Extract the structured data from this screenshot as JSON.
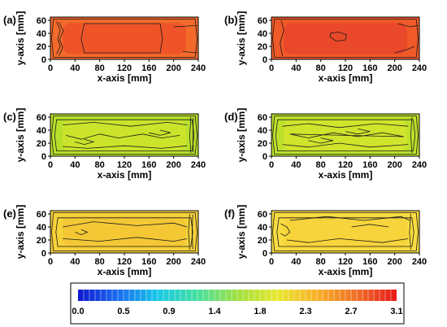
{
  "chart_data": [
    {
      "type": "heatmap",
      "panel_label": "(a)",
      "xlabel": "x-axis [mm]",
      "ylabel": "y-axis [mm]",
      "xlim": [
        0,
        240
      ],
      "ylim": [
        0,
        65
      ],
      "xticks": [
        "0",
        "40",
        "80",
        "120",
        "160",
        "200",
        "240"
      ],
      "yticks": [
        "0",
        "20",
        "40",
        "60"
      ],
      "fill_color": "#f36a2b",
      "inner_fill_color": "#ee4f28",
      "contours": [
        {
          "points": [
            [
              5,
              3
            ],
            [
              235,
              3
            ],
            [
              238,
              32
            ],
            [
              235,
              62
            ],
            [
              5,
              62
            ],
            [
              2,
              32
            ]
          ]
        },
        {
          "points": [
            [
              10,
              8
            ],
            [
              16,
              20
            ],
            [
              12,
              32
            ],
            [
              16,
              45
            ],
            [
              10,
              58
            ]
          ]
        },
        {
          "points": [
            [
              14,
              6
            ],
            [
              20,
              18
            ],
            [
              15,
              30
            ],
            [
              21,
              44
            ],
            [
              14,
              57
            ]
          ]
        },
        {
          "points": [
            [
              55,
              10
            ],
            [
              178,
              10
            ],
            [
              182,
              32
            ],
            [
              178,
              55
            ],
            [
              55,
              55
            ],
            [
              50,
              32
            ]
          ]
        },
        {
          "points": [
            [
              200,
              50
            ],
            [
              238,
              52
            ]
          ]
        },
        {
          "points": [
            [
              215,
              12
            ],
            [
              238,
              10
            ]
          ]
        }
      ]
    },
    {
      "type": "heatmap",
      "panel_label": "(b)",
      "xlabel": "x-axis [mm]",
      "ylabel": "y-axis [mm]",
      "xlim": [
        0,
        240
      ],
      "ylim": [
        0,
        65
      ],
      "xticks": [
        "0",
        "40",
        "80",
        "120",
        "160",
        "200",
        "240"
      ],
      "yticks": [
        "0",
        "20",
        "40",
        "60"
      ],
      "fill_color": "#f05a28",
      "inner_fill_color": "#e8442a",
      "contours": [
        {
          "points": [
            [
              5,
              3
            ],
            [
              235,
              3
            ],
            [
              238,
              32
            ],
            [
              235,
              62
            ],
            [
              5,
              62
            ],
            [
              2,
              32
            ]
          ]
        },
        {
          "points": [
            [
              18,
              5
            ],
            [
              14,
              25
            ],
            [
              20,
              45
            ],
            [
              16,
              60
            ]
          ]
        },
        {
          "points": [
            [
              95,
              35
            ],
            [
              105,
              28
            ],
            [
              120,
              30
            ],
            [
              122,
              38
            ],
            [
              108,
              42
            ],
            [
              96,
              40
            ]
          ]
        },
        {
          "points": [
            [
              200,
              10
            ],
            [
              220,
              15
            ],
            [
              232,
              20
            ]
          ]
        },
        {
          "points": [
            [
              205,
              55
            ],
            [
              225,
              50
            ],
            [
              238,
              52
            ]
          ]
        }
      ]
    },
    {
      "type": "heatmap",
      "panel_label": "(c)",
      "xlabel": "x-axis [mm]",
      "ylabel": "y-axis [mm]",
      "xlim": [
        0,
        240
      ],
      "ylim": [
        0,
        65
      ],
      "xticks": [
        "0",
        "40",
        "80",
        "120",
        "160",
        "200",
        "240"
      ],
      "yticks": [
        "0",
        "20",
        "40",
        "60"
      ],
      "fill_color": "#b8e02a",
      "inner_fill_color": "#cfe42c",
      "contours": [
        {
          "points": [
            [
              5,
              3
            ],
            [
              235,
              3
            ],
            [
              238,
              32
            ],
            [
              235,
              62
            ],
            [
              5,
              62
            ],
            [
              2,
              32
            ]
          ]
        },
        {
          "points": [
            [
              10,
              8
            ],
            [
              230,
              8
            ],
            [
              233,
              32
            ],
            [
              230,
              56
            ],
            [
              10,
              56
            ],
            [
              7,
              32
            ]
          ]
        },
        {
          "points": [
            [
              20,
              15
            ],
            [
              60,
              12
            ],
            [
              120,
              16
            ],
            [
              180,
              12
            ],
            [
              222,
              16
            ]
          ]
        },
        {
          "points": [
            [
              20,
              48
            ],
            [
              70,
              52
            ],
            [
              130,
              46
            ],
            [
              190,
              52
            ],
            [
              222,
              48
            ]
          ]
        },
        {
          "points": [
            [
              25,
              32
            ],
            [
              50,
              26
            ],
            [
              80,
              34
            ],
            [
              110,
              28
            ],
            [
              150,
              34
            ],
            [
              180,
              28
            ],
            [
              210,
              32
            ]
          ]
        },
        {
          "points": [
            [
              40,
              22
            ],
            [
              55,
              18
            ],
            [
              70,
              22
            ],
            [
              55,
              26
            ]
          ]
        },
        {
          "points": [
            [
              160,
              36
            ],
            [
              178,
              32
            ],
            [
              195,
              36
            ],
            [
              178,
              40
            ]
          ]
        },
        {
          "points": [
            [
              228,
              5
            ],
            [
              226,
              32
            ],
            [
              228,
              60
            ]
          ]
        },
        {
          "points": [
            [
              232,
              6
            ],
            [
              231,
              32
            ],
            [
              232,
              59
            ]
          ]
        }
      ]
    },
    {
      "type": "heatmap",
      "panel_label": "(d)",
      "xlabel": "x-axis [mm]",
      "ylabel": "y-axis [mm]",
      "xlim": [
        0,
        240
      ],
      "ylim": [
        0,
        65
      ],
      "xticks": [
        "0",
        "40",
        "80",
        "120",
        "160",
        "200",
        "240"
      ],
      "yticks": [
        "0",
        "20",
        "40",
        "60"
      ],
      "fill_color": "#bde12b",
      "inner_fill_color": "#d6e52d",
      "contours": [
        {
          "points": [
            [
              5,
              3
            ],
            [
              235,
              3
            ],
            [
              238,
              32
            ],
            [
              235,
              62
            ],
            [
              5,
              62
            ],
            [
              2,
              32
            ]
          ]
        },
        {
          "points": [
            [
              10,
              8
            ],
            [
              230,
              8
            ],
            [
              233,
              32
            ],
            [
              230,
              56
            ],
            [
              10,
              56
            ],
            [
              7,
              32
            ]
          ]
        },
        {
          "points": [
            [
              18,
              18
            ],
            [
              60,
              14
            ],
            [
              110,
              20
            ],
            [
              160,
              14
            ],
            [
              222,
              18
            ]
          ]
        },
        {
          "points": [
            [
              18,
              46
            ],
            [
              60,
              50
            ],
            [
              110,
              44
            ],
            [
              170,
              50
            ],
            [
              222,
              46
            ]
          ]
        },
        {
          "points": [
            [
              30,
              34
            ],
            [
              60,
              28
            ],
            [
              100,
              36
            ],
            [
              140,
              30
            ],
            [
              180,
              36
            ],
            [
              215,
              30
            ]
          ]
        },
        {
          "points": [
            [
              120,
              38
            ],
            [
              140,
              34
            ],
            [
              160,
              38
            ],
            [
              140,
              42
            ]
          ]
        },
        {
          "points": [
            [
              60,
              24
            ],
            [
              80,
              20
            ],
            [
              100,
              24
            ],
            [
              80,
              28
            ]
          ]
        },
        {
          "points": [
            [
              228,
              5
            ],
            [
              226,
              32
            ],
            [
              228,
              60
            ]
          ]
        }
      ]
    },
    {
      "type": "heatmap",
      "panel_label": "(e)",
      "xlabel": "x-axis [mm]",
      "ylabel": "y-axis [mm]",
      "xlim": [
        0,
        240
      ],
      "ylim": [
        0,
        65
      ],
      "xticks": [
        "0",
        "40",
        "80",
        "120",
        "160",
        "200",
        "240"
      ],
      "yticks": [
        "0",
        "20",
        "40",
        "60"
      ],
      "fill_color": "#f7d23a",
      "inner_fill_color": "#f3c534",
      "contours": [
        {
          "points": [
            [
              5,
              3
            ],
            [
              235,
              3
            ],
            [
              238,
              32
            ],
            [
              235,
              62
            ],
            [
              5,
              62
            ],
            [
              2,
              32
            ]
          ]
        },
        {
          "points": [
            [
              12,
              10
            ],
            [
              228,
              10
            ],
            [
              231,
              32
            ],
            [
              228,
              54
            ],
            [
              12,
              54
            ],
            [
              9,
              32
            ]
          ]
        },
        {
          "points": [
            [
              20,
              40
            ],
            [
              70,
              48
            ],
            [
              140,
              42
            ],
            [
              200,
              46
            ],
            [
              222,
              40
            ]
          ]
        },
        {
          "points": [
            [
              20,
              22
            ],
            [
              80,
              18
            ],
            [
              140,
              24
            ],
            [
              200,
              18
            ],
            [
              222,
              22
            ]
          ]
        },
        {
          "points": [
            [
              40,
              32
            ],
            [
              50,
              28
            ],
            [
              60,
              32
            ],
            [
              50,
              36
            ]
          ]
        },
        {
          "points": [
            [
              226,
              5
            ],
            [
              224,
              32
            ],
            [
              226,
              60
            ]
          ]
        },
        {
          "points": [
            [
              231,
              6
            ],
            [
              230,
              32
            ],
            [
              231,
              59
            ]
          ]
        }
      ]
    },
    {
      "type": "heatmap",
      "panel_label": "(f)",
      "xlabel": "x-axis [mm]",
      "ylabel": "y-axis [mm]",
      "xlim": [
        0,
        240
      ],
      "ylim": [
        0,
        65
      ],
      "xticks": [
        "0",
        "40",
        "80",
        "120",
        "160",
        "200",
        "240"
      ],
      "yticks": [
        "0",
        "20",
        "40",
        "60"
      ],
      "fill_color": "#f9dc40",
      "inner_fill_color": "#f6d23a",
      "contours": [
        {
          "points": [
            [
              5,
              3
            ],
            [
              235,
              3
            ],
            [
              238,
              32
            ],
            [
              235,
              62
            ],
            [
              5,
              62
            ],
            [
              2,
              32
            ]
          ]
        },
        {
          "points": [
            [
              12,
              10
            ],
            [
              228,
              10
            ],
            [
              231,
              32
            ],
            [
              228,
              54
            ],
            [
              12,
              54
            ],
            [
              9,
              32
            ]
          ]
        },
        {
          "points": [
            [
              30,
              50
            ],
            [
              90,
              56
            ],
            [
              150,
              50
            ],
            [
              210,
              56
            ],
            [
              225,
              50
            ]
          ]
        },
        {
          "points": [
            [
              25,
              20
            ],
            [
              60,
              16
            ],
            [
              110,
              22
            ],
            [
              180,
              16
            ],
            [
              222,
              22
            ]
          ]
        },
        {
          "points": [
            [
              15,
              45
            ],
            [
              25,
              40
            ],
            [
              30,
              32
            ],
            [
              22,
              26
            ],
            [
              15,
              30
            ]
          ]
        },
        {
          "points": [
            [
              130,
              40
            ],
            [
              160,
              44
            ],
            [
              190,
              40
            ]
          ]
        },
        {
          "points": [
            [
              226,
              5
            ],
            [
              224,
              32
            ],
            [
              226,
              60
            ]
          ]
        }
      ]
    }
  ],
  "colorbar": {
    "ticks": [
      "0.0",
      "0.5",
      "0.9",
      "1.4",
      "1.8",
      "2.3",
      "2.7",
      "3.1"
    ],
    "stops": [
      "#1018d0",
      "#1a6cf0",
      "#18c8e8",
      "#46e0a0",
      "#a0e040",
      "#e8e830",
      "#f8b028",
      "#f07028",
      "#e81818"
    ]
  }
}
